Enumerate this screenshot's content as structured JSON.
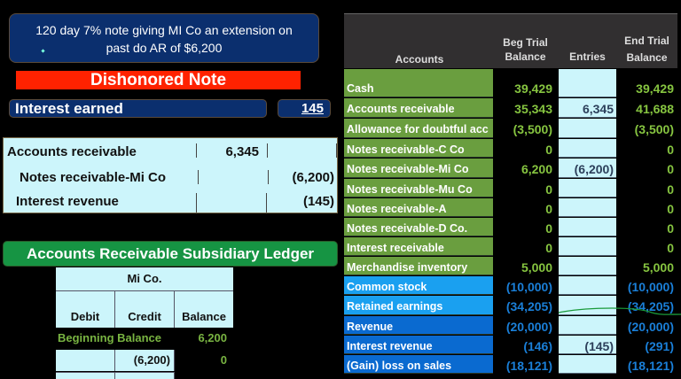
{
  "note": {
    "text_line1": "120 day 7% note giving MI Co an extension on",
    "text_line2": "past do AR of $6,200"
  },
  "banner": {
    "label": "Dishonored Note",
    "color": "#ff2200"
  },
  "interest_earned": {
    "label": "Interest earned",
    "value": "145"
  },
  "journal_entry": {
    "rows": [
      {
        "account": "Accounts receivable",
        "debit": "6,345",
        "credit": ""
      },
      {
        "account": "Notes receivable-Mi Co",
        "debit": "",
        "credit": "(6,200)"
      },
      {
        "account": "Interest revenue",
        "debit": "",
        "credit": "(145)"
      }
    ]
  },
  "subsidiary_ledger": {
    "title": "Accounts Receivable Subsidiary Ledger",
    "customer": "Mi Co.",
    "headers": [
      "Debit",
      "Credit",
      "Balance"
    ],
    "beginning_label": "Beginning Balance",
    "beginning_balance": "6,200",
    "rows": [
      {
        "debit": "",
        "credit": "(6,200)",
        "balance": "0"
      }
    ]
  },
  "trial_balance": {
    "headers": {
      "accounts": "Accounts",
      "beg_line1": "Beg Trial",
      "beg_line2": "Balance",
      "entries": "Entries",
      "end_line1": "End Trial",
      "end_line2": "Balance"
    },
    "rows": [
      {
        "account": "Cash",
        "beg": "39,429",
        "entry": "",
        "end": "39,429",
        "group": "asset"
      },
      {
        "account": "Accounts receivable",
        "beg": "35,343",
        "entry": "6,345",
        "end": "41,688",
        "group": "asset"
      },
      {
        "account": "Allowance for doubtful acc",
        "beg": "(3,500)",
        "entry": "",
        "end": "(3,500)",
        "group": "asset"
      },
      {
        "account": "Notes receivable-C Co",
        "beg": "0",
        "entry": "",
        "end": "0",
        "group": "asset"
      },
      {
        "account": "Notes receivable-Mi Co",
        "beg": "6,200",
        "entry": "(6,200)",
        "end": "0",
        "group": "asset"
      },
      {
        "account": "Notes receivable-Mu Co",
        "beg": "0",
        "entry": "",
        "end": "0",
        "group": "asset"
      },
      {
        "account": "Notes receivable-A",
        "beg": "0",
        "entry": "",
        "end": "0",
        "group": "asset"
      },
      {
        "account": "Notes receivable-D Co.",
        "beg": "0",
        "entry": "",
        "end": "0",
        "group": "asset"
      },
      {
        "account": "Interest receivable",
        "beg": "0",
        "entry": "",
        "end": "0",
        "group": "asset"
      },
      {
        "account": "Merchandise inventory",
        "beg": "5,000",
        "entry": "",
        "end": "5,000",
        "group": "asset"
      },
      {
        "account": "Common stock",
        "beg": "(10,000)",
        "entry": "",
        "end": "(10,000)",
        "group": "equity"
      },
      {
        "account": "Retained earnings",
        "beg": "(34,205)",
        "entry": "",
        "end": "(34,205)",
        "group": "equity"
      },
      {
        "account": "Revenue",
        "beg": "(20,000)",
        "entry": "",
        "end": "(20,000)",
        "group": "income"
      },
      {
        "account": "Interest revenue",
        "beg": "(146)",
        "entry": "(145)",
        "end": "(291)",
        "group": "income"
      },
      {
        "account": "(Gain) loss on sales",
        "beg": "(18,121)",
        "entry": "",
        "end": "(18,121)",
        "group": "income"
      }
    ],
    "colors": {
      "asset": "#6a9e3f",
      "equity": "#1aa0f0",
      "income": "#0a6ad0"
    }
  }
}
